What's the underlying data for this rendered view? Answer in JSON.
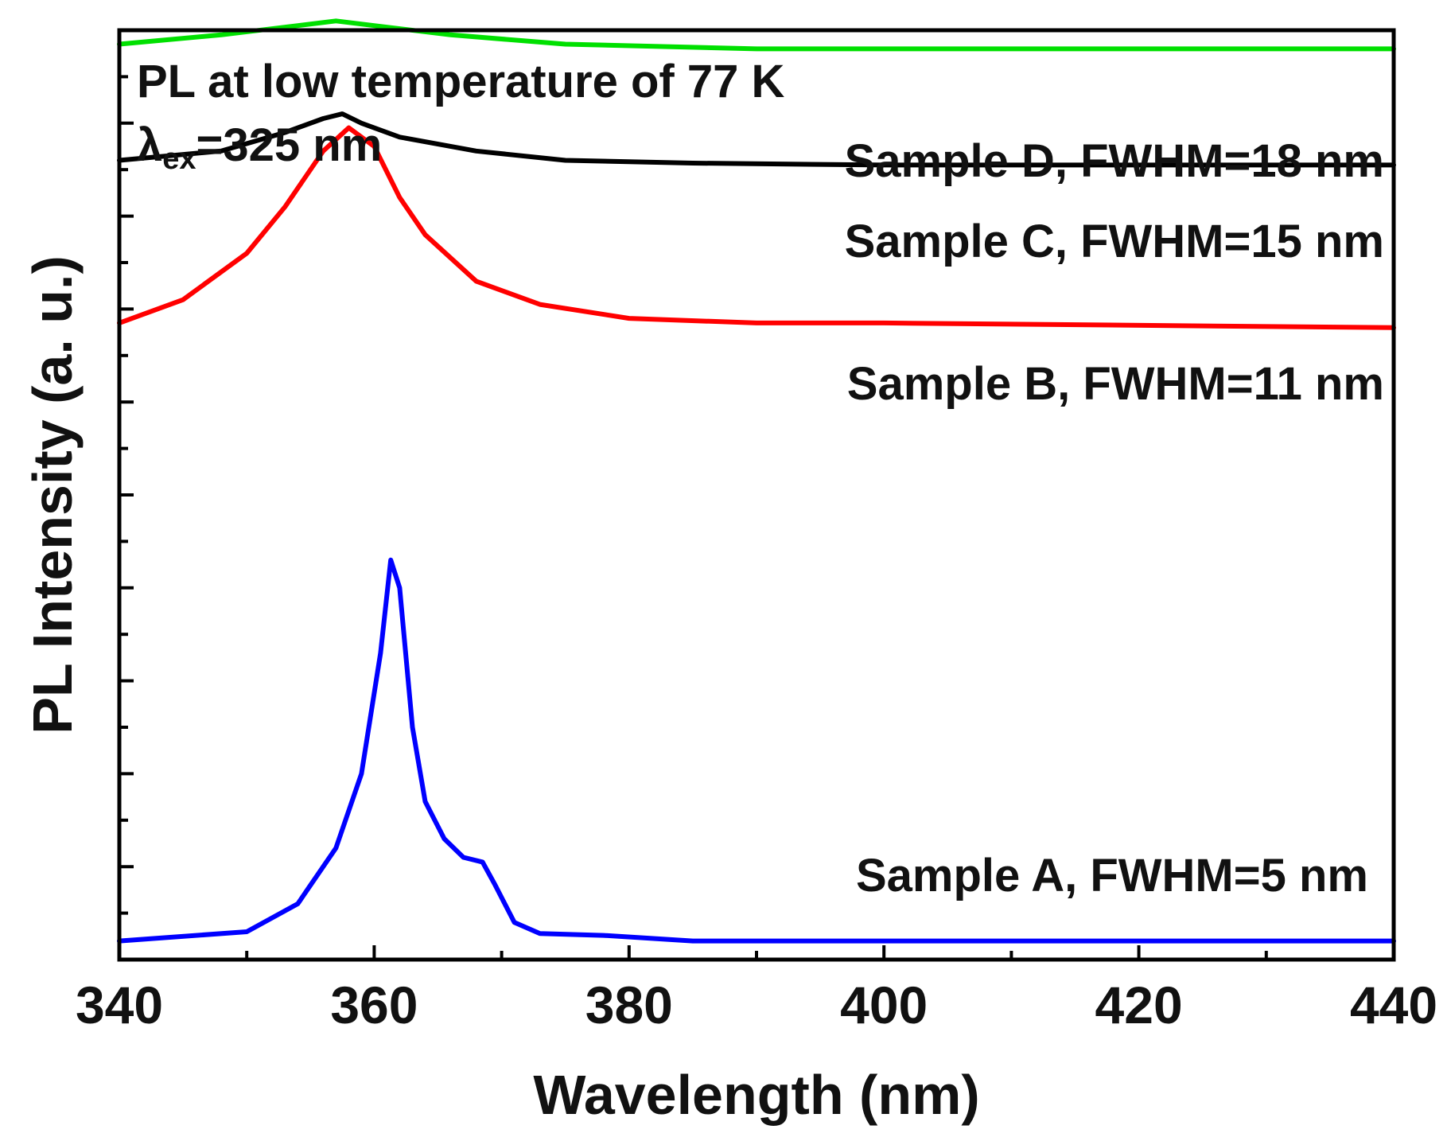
{
  "chart_data": {
    "type": "line",
    "xlabel": "Wavelength (nm)",
    "ylabel": "PL Intensity (a. u.)",
    "xlim": [
      340,
      440
    ],
    "ylim": [
      0,
      10
    ],
    "x_ticks": [
      340,
      360,
      380,
      400,
      420,
      440
    ],
    "y_tick_labels_shown": false,
    "annotations": {
      "line1": "PL at low temperature of 77 K",
      "line2_symbol": "λ",
      "line2_subscript": "ex",
      "line2_value": "=325 nm"
    },
    "series": [
      {
        "label": "Sample A, FWHM=5 nm",
        "color": "#0000ff",
        "points": [
          [
            340,
            0.2
          ],
          [
            350,
            0.3
          ],
          [
            354,
            0.6
          ],
          [
            357,
            1.2
          ],
          [
            359,
            2.0
          ],
          [
            360.5,
            3.3
          ],
          [
            361.3,
            4.3
          ],
          [
            362,
            4.0
          ],
          [
            363,
            2.5
          ],
          [
            364,
            1.7
          ],
          [
            365.5,
            1.3
          ],
          [
            367,
            1.1
          ],
          [
            368.5,
            1.05
          ],
          [
            369.5,
            0.8
          ],
          [
            371,
            0.4
          ],
          [
            373,
            0.28
          ],
          [
            378,
            0.26
          ],
          [
            385,
            0.2
          ],
          [
            440,
            0.2
          ]
        ]
      },
      {
        "label": "Sample B, FWHM=11 nm",
        "color": "#ff0000",
        "points": [
          [
            340,
            6.85
          ],
          [
            345,
            7.1
          ],
          [
            350,
            7.6
          ],
          [
            353,
            8.1
          ],
          [
            356,
            8.7
          ],
          [
            358,
            8.95
          ],
          [
            360,
            8.75
          ],
          [
            362,
            8.2
          ],
          [
            364,
            7.8
          ],
          [
            368,
            7.3
          ],
          [
            373,
            7.05
          ],
          [
            380,
            6.9
          ],
          [
            390,
            6.85
          ],
          [
            400,
            6.85
          ],
          [
            440,
            6.8
          ]
        ]
      },
      {
        "label": "Sample C, FWHM=15 nm",
        "color": "#000000",
        "points": [
          [
            340,
            8.6
          ],
          [
            348,
            8.7
          ],
          [
            353,
            8.9
          ],
          [
            356,
            9.05
          ],
          [
            357.5,
            9.1
          ],
          [
            359,
            9.0
          ],
          [
            362,
            8.85
          ],
          [
            368,
            8.7
          ],
          [
            375,
            8.6
          ],
          [
            385,
            8.57
          ],
          [
            400,
            8.55
          ],
          [
            440,
            8.55
          ]
        ]
      },
      {
        "label": "Sample D, FWHM=18 nm",
        "color": "#00e000",
        "points": [
          [
            340,
            9.85
          ],
          [
            348,
            9.95
          ],
          [
            354,
            10.05
          ],
          [
            357,
            10.1
          ],
          [
            360,
            10.05
          ],
          [
            366,
            9.95
          ],
          [
            375,
            9.85
          ],
          [
            390,
            9.8
          ],
          [
            440,
            9.8
          ]
        ]
      }
    ]
  }
}
